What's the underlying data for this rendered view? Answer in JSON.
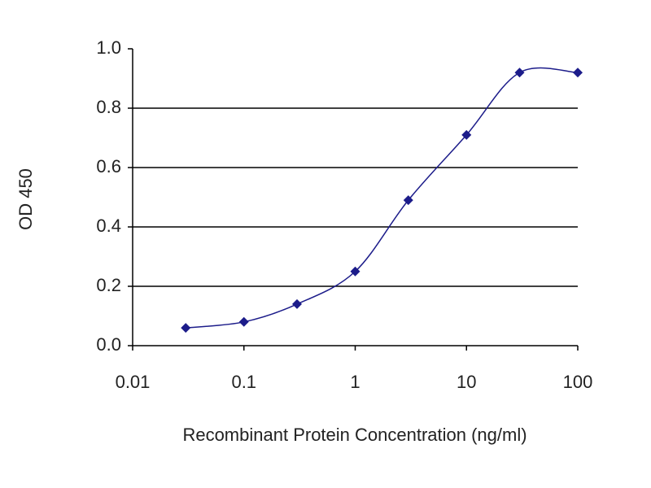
{
  "chart_data": {
    "type": "line",
    "xlabel": "Recombinant Protein Concentration (ng/ml)",
    "ylabel": "OD 450",
    "x": [
      0.03,
      0.1,
      0.3,
      1,
      3,
      10,
      30,
      100
    ],
    "series": [
      {
        "color": "#1c1c8a",
        "values": [
          0.06,
          0.08,
          0.14,
          0.25,
          0.49,
          0.71,
          0.92,
          0.92
        ]
      }
    ],
    "xscale": "log",
    "xlim": [
      0.01,
      100
    ],
    "xticks": [
      0.01,
      0.1,
      1,
      10,
      100
    ],
    "ylim": [
      0,
      1
    ],
    "yticks": [
      {
        "value": 0,
        "label": "0.0"
      },
      0.2,
      0.4,
      0.6,
      0.8,
      {
        "value": 1,
        "label": "1.0"
      }
    ],
    "grid": true
  }
}
